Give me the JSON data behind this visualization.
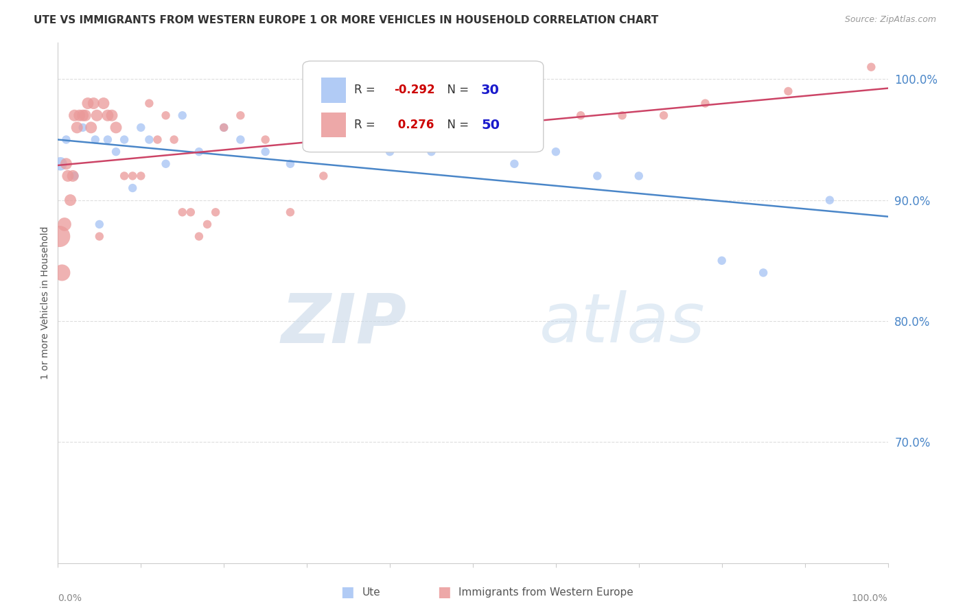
{
  "title": "UTE VS IMMIGRANTS FROM WESTERN EUROPE 1 OR MORE VEHICLES IN HOUSEHOLD CORRELATION CHART",
  "source": "Source: ZipAtlas.com",
  "ylabel": "1 or more Vehicles in Household",
  "ytick_values": [
    70,
    80,
    90,
    100
  ],
  "xlim": [
    0,
    100
  ],
  "ylim": [
    60,
    103
  ],
  "legend_blue_label": "Ute",
  "legend_pink_label": "Immigrants from Western Europe",
  "R_blue": -0.292,
  "N_blue": 30,
  "R_pink": 0.276,
  "N_pink": 50,
  "blue_color": "#a4c2f4",
  "pink_color": "#ea9999",
  "trend_blue": "#4a86c8",
  "trend_pink": "#cc4466",
  "blue_x": [
    0.3,
    1.0,
    2.0,
    3.0,
    4.5,
    5.0,
    6.0,
    7.0,
    8.0,
    9.0,
    10.0,
    11.0,
    13.0,
    15.0,
    17.0,
    20.0,
    22.0,
    25.0,
    28.0,
    30.0,
    35.0,
    40.0,
    45.0,
    55.0,
    60.0,
    65.0,
    70.0,
    80.0,
    85.0,
    93.0
  ],
  "blue_y": [
    93,
    95,
    92,
    96,
    95,
    88,
    95,
    94,
    95,
    91,
    96,
    95,
    93,
    97,
    94,
    96,
    95,
    94,
    93,
    95,
    95,
    94,
    94,
    93,
    94,
    92,
    92,
    85,
    84,
    90
  ],
  "blue_sz": [
    200,
    80,
    80,
    80,
    80,
    80,
    80,
    80,
    80,
    80,
    80,
    80,
    80,
    80,
    80,
    80,
    80,
    80,
    80,
    80,
    80,
    80,
    80,
    80,
    80,
    80,
    80,
    80,
    80,
    80
  ],
  "pink_x": [
    0.2,
    0.5,
    0.8,
    1.0,
    1.2,
    1.5,
    1.8,
    2.0,
    2.3,
    2.6,
    3.0,
    3.3,
    3.6,
    4.0,
    4.3,
    4.7,
    5.0,
    5.5,
    6.0,
    6.5,
    7.0,
    8.0,
    9.0,
    10.0,
    11.0,
    12.0,
    13.0,
    14.0,
    15.0,
    16.0,
    17.0,
    18.0,
    19.0,
    20.0,
    22.0,
    25.0,
    28.0,
    32.0,
    36.0,
    40.0,
    43.0,
    48.0,
    53.0,
    58.0,
    63.0,
    68.0,
    73.0,
    78.0,
    88.0,
    98.0
  ],
  "pink_y": [
    87,
    84,
    88,
    93,
    92,
    90,
    92,
    97,
    96,
    97,
    97,
    97,
    98,
    96,
    98,
    97,
    87,
    98,
    97,
    97,
    96,
    92,
    92,
    92,
    98,
    95,
    97,
    95,
    89,
    89,
    87,
    88,
    89,
    96,
    97,
    95,
    89,
    92,
    96,
    97,
    96,
    97,
    96,
    97,
    97,
    97,
    97,
    98,
    99,
    101
  ],
  "pink_sz": [
    500,
    300,
    200,
    150,
    150,
    150,
    150,
    150,
    150,
    150,
    150,
    150,
    150,
    150,
    150,
    150,
    80,
    150,
    150,
    150,
    150,
    80,
    80,
    80,
    80,
    80,
    80,
    80,
    80,
    80,
    80,
    80,
    80,
    80,
    80,
    80,
    80,
    80,
    80,
    80,
    80,
    80,
    80,
    80,
    80,
    80,
    80,
    80,
    80,
    80
  ],
  "watermark_zip": "ZIP",
  "watermark_atlas": "atlas",
  "background_color": "#ffffff",
  "grid_color": "#dddddd",
  "spine_color": "#cccccc"
}
